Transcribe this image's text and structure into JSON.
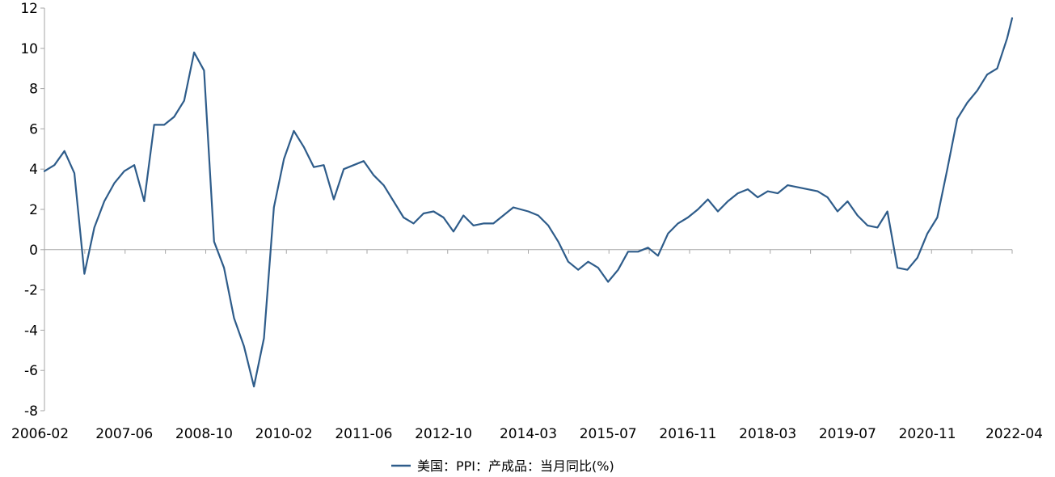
{
  "chart_data": {
    "type": "line",
    "title": "",
    "xlabel": "",
    "ylabel": "",
    "ylim": [
      -8,
      12
    ],
    "yticks": [
      -8,
      -6,
      -4,
      -2,
      0,
      2,
      4,
      6,
      8,
      10,
      12
    ],
    "x_tick_labels": [
      "2006-02",
      "2007-06",
      "2008-10",
      "2010-02",
      "2011-06",
      "2012-10",
      "2014-03",
      "2015-07",
      "2016-11",
      "2018-03",
      "2019-07",
      "2020-11",
      "2022-04"
    ],
    "grid": false,
    "legend": {
      "position": "bottom-center"
    },
    "colors": {
      "series": "#2e5c8a",
      "axis": "#a6a6a6"
    },
    "series": [
      {
        "name": "美国：PPI：产成品：当月同比(%)",
        "x": [
          "2006-02",
          "2006-04",
          "2006-06",
          "2006-08",
          "2006-10",
          "2006-12",
          "2007-02",
          "2007-04",
          "2007-06",
          "2007-08",
          "2007-10",
          "2007-12",
          "2008-02",
          "2008-04",
          "2008-06",
          "2008-08",
          "2008-10",
          "2008-12",
          "2009-02",
          "2009-04",
          "2009-06",
          "2009-08",
          "2009-10",
          "2009-12",
          "2010-02",
          "2010-04",
          "2010-06",
          "2010-08",
          "2010-10",
          "2010-12",
          "2011-02",
          "2011-04",
          "2011-06",
          "2011-08",
          "2011-10",
          "2011-12",
          "2012-02",
          "2012-04",
          "2012-06",
          "2012-08",
          "2012-10",
          "2012-12",
          "2013-02",
          "2013-04",
          "2013-06",
          "2013-08",
          "2013-10",
          "2013-12",
          "2014-03",
          "2014-05",
          "2014-07",
          "2014-09",
          "2014-11",
          "2015-01",
          "2015-03",
          "2015-05",
          "2015-07",
          "2015-09",
          "2015-11",
          "2016-01",
          "2016-03",
          "2016-05",
          "2016-07",
          "2016-09",
          "2016-11",
          "2017-01",
          "2017-03",
          "2017-05",
          "2017-07",
          "2017-09",
          "2017-11",
          "2018-01",
          "2018-03",
          "2018-05",
          "2018-07",
          "2018-09",
          "2018-11",
          "2019-01",
          "2019-03",
          "2019-05",
          "2019-07",
          "2019-09",
          "2019-11",
          "2020-01",
          "2020-03",
          "2020-05",
          "2020-07",
          "2020-09",
          "2020-11",
          "2021-01",
          "2021-03",
          "2021-05",
          "2021-07",
          "2021-09",
          "2021-11",
          "2022-01",
          "2022-03",
          "2022-04"
        ],
        "values": [
          3.9,
          4.2,
          4.9,
          3.8,
          -1.2,
          1.1,
          2.4,
          3.3,
          3.9,
          4.2,
          2.4,
          6.2,
          6.2,
          6.6,
          7.4,
          9.8,
          8.9,
          0.4,
          -0.9,
          -3.4,
          -4.8,
          -6.8,
          -4.4,
          2.1,
          4.5,
          5.9,
          5.1,
          4.1,
          4.2,
          2.5,
          4.0,
          4.2,
          4.4,
          3.7,
          3.2,
          2.4,
          1.6,
          1.3,
          1.8,
          1.9,
          1.6,
          0.9,
          1.7,
          1.2,
          1.3,
          1.3,
          1.7,
          2.1,
          1.9,
          1.7,
          1.2,
          0.4,
          -0.6,
          -1.0,
          -0.6,
          -0.9,
          -1.6,
          -1.0,
          -0.1,
          -0.1,
          0.1,
          -0.3,
          0.8,
          1.3,
          1.6,
          2.0,
          2.5,
          1.9,
          2.4,
          2.8,
          3.0,
          2.6,
          2.9,
          2.8,
          3.2,
          3.1,
          3.0,
          2.9,
          2.6,
          1.9,
          2.4,
          1.7,
          1.2,
          1.1,
          1.9,
          -0.9,
          -1.0,
          -0.4,
          0.8,
          1.6,
          4.0,
          6.5,
          7.3,
          7.9,
          8.7,
          9.0,
          10.5,
          11.5
        ]
      }
    ]
  }
}
